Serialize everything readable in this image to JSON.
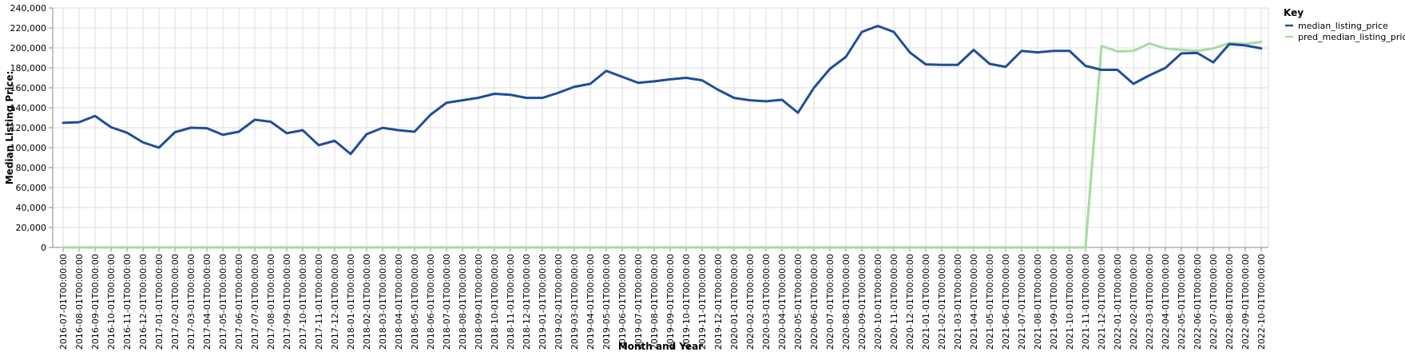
{
  "chart_data": {
    "type": "line",
    "xlabel": "Month and Year",
    "ylabel": "Median Listing Price:",
    "ylim": [
      0,
      240000
    ],
    "yticks": [
      "0",
      "20,000",
      "40,000",
      "60,000",
      "80,000",
      "100,000",
      "120,000",
      "140,000",
      "160,000",
      "180,000",
      "200,000",
      "220,000",
      "240,000"
    ],
    "grid": true,
    "legend": {
      "title": "Key",
      "placement": "top-right"
    },
    "x": [
      "2016-07-01T00:00:00",
      "2016-08-01T00:00:00",
      "2016-09-01T00:00:00",
      "2016-10-01T00:00:00",
      "2016-11-01T00:00:00",
      "2016-12-01T00:00:00",
      "2017-01-01T00:00:00",
      "2017-02-01T00:00:00",
      "2017-03-01T00:00:00",
      "2017-04-01T00:00:00",
      "2017-05-01T00:00:00",
      "2017-06-01T00:00:00",
      "2017-07-01T00:00:00",
      "2017-08-01T00:00:00",
      "2017-09-01T00:00:00",
      "2017-10-01T00:00:00",
      "2017-11-01T00:00:00",
      "2017-12-01T00:00:00",
      "2018-01-01T00:00:00",
      "2018-02-01T00:00:00",
      "2018-03-01T00:00:00",
      "2018-04-01T00:00:00",
      "2018-05-01T00:00:00",
      "2018-06-01T00:00:00",
      "2018-07-01T00:00:00",
      "2018-08-01T00:00:00",
      "2018-09-01T00:00:00",
      "2018-10-01T00:00:00",
      "2018-11-01T00:00:00",
      "2018-12-01T00:00:00",
      "2019-01-01T00:00:00",
      "2019-02-01T00:00:00",
      "2019-03-01T00:00:00",
      "2019-04-01T00:00:00",
      "2019-05-01T00:00:00",
      "2019-06-01T00:00:00",
      "2019-07-01T00:00:00",
      "2019-08-01T00:00:00",
      "2019-09-01T00:00:00",
      "2019-10-01T00:00:00",
      "2019-11-01T00:00:00",
      "2019-12-01T00:00:00",
      "2020-01-01T00:00:00",
      "2020-02-01T00:00:00",
      "2020-03-01T00:00:00",
      "2020-04-01T00:00:00",
      "2020-05-01T00:00:00",
      "2020-06-01T00:00:00",
      "2020-07-01T00:00:00",
      "2020-08-01T00:00:00",
      "2020-09-01T00:00:00",
      "2020-10-01T00:00:00",
      "2020-11-01T00:00:00",
      "2020-12-01T00:00:00",
      "2021-01-01T00:00:00",
      "2021-02-01T00:00:00",
      "2021-03-01T00:00:00",
      "2021-04-01T00:00:00",
      "2021-05-01T00:00:00",
      "2021-06-01T00:00:00",
      "2021-07-01T00:00:00",
      "2021-08-01T00:00:00",
      "2021-09-01T00:00:00",
      "2021-10-01T00:00:00",
      "2021-11-01T00:00:00",
      "2021-12-01T00:00:00",
      "2022-01-01T00:00:00",
      "2022-02-01T00:00:00",
      "2022-03-01T00:00:00",
      "2022-04-01T00:00:00",
      "2022-05-01T00:00:00",
      "2022-06-01T00:00:00",
      "2022-07-01T00:00:00",
      "2022-08-01T00:00:00",
      "2022-09-01T00:00:00",
      "2022-10-01T00:00:00"
    ],
    "series": [
      {
        "name": "median_listing_price",
        "color": "#1f4e99",
        "values": [
          124900,
          125500,
          131800,
          120500,
          115000,
          105300,
          100000,
          115500,
          120000,
          119500,
          112900,
          116000,
          128000,
          126000,
          114500,
          117500,
          102500,
          106900,
          93700,
          113500,
          119900,
          117500,
          116000,
          133000,
          145000,
          147500,
          150000,
          154000,
          153000,
          149900,
          149900,
          155000,
          161000,
          164000,
          177000,
          171000,
          165000,
          166500,
          168500,
          170000,
          167500,
          158000,
          149900,
          147500,
          146500,
          148000,
          135000,
          160000,
          179000,
          191000,
          216000,
          222000,
          216000,
          195500,
          183500,
          183000,
          183000,
          198000,
          184000,
          181000,
          197000,
          195500,
          197000,
          197000,
          182000,
          178000,
          178000,
          164000,
          172500,
          179900,
          194500,
          194900,
          185500,
          203800,
          202500,
          199500
        ]
      },
      {
        "name": "pred_median_listing_price",
        "color": "#a6dba0",
        "values": [
          0,
          0,
          0,
          0,
          0,
          0,
          0,
          0,
          0,
          0,
          0,
          0,
          0,
          0,
          0,
          0,
          0,
          0,
          0,
          0,
          0,
          0,
          0,
          0,
          0,
          0,
          0,
          0,
          0,
          0,
          0,
          0,
          0,
          0,
          0,
          0,
          0,
          0,
          0,
          0,
          0,
          0,
          0,
          0,
          0,
          0,
          0,
          0,
          0,
          0,
          0,
          0,
          0,
          0,
          0,
          0,
          0,
          0,
          0,
          0,
          0,
          0,
          0,
          0,
          0,
          202000,
          196500,
          197000,
          204500,
          199500,
          198000,
          197000,
          199500,
          204800,
          204000,
          206000
        ]
      }
    ]
  }
}
